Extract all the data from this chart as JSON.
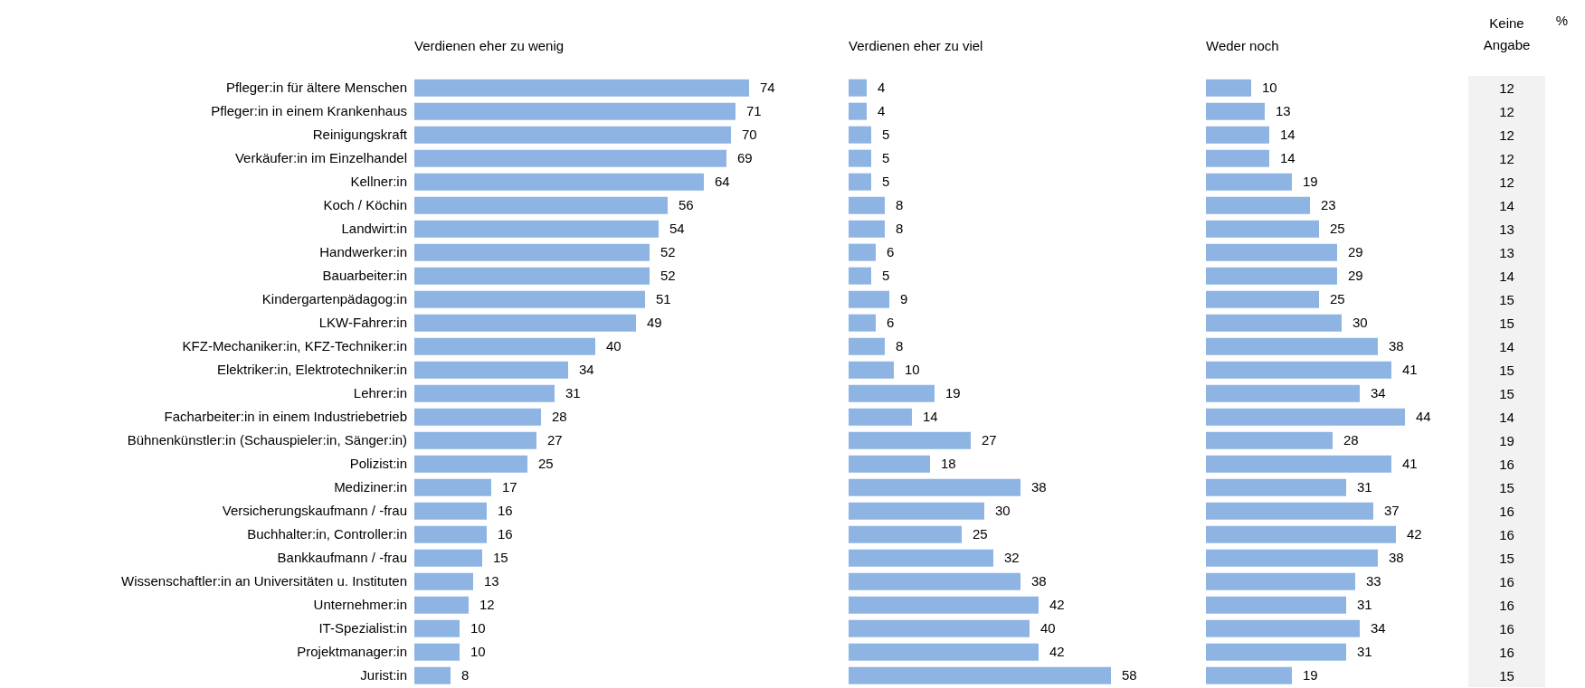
{
  "chart_data": [
    {
      "type": "bar",
      "orientation": "horizontal",
      "title": "Verdienen eher zu wenig",
      "tick_labels": "y",
      "data_labels": true,
      "color": "#8eb4e3",
      "categories": [
        "Pfleger:in für ältere Menschen",
        "Pfleger:in in einem Krankenhaus",
        "Reinigungskraft",
        "Verkäufer:in im Einzelhandel",
        "Kellner:in",
        "Koch / Köchin",
        "Landwirt:in",
        "Handwerker:in",
        "Bauarbeiter:in",
        "Kindergartenpädagog:in",
        "LKW-Fahrer:in",
        "KFZ-Mechaniker:in, KFZ-Techniker:in",
        "Elektriker:in, Elektrotechniker:in",
        "Lehrer:in",
        "Facharbeiter:in in einem Industriebetrieb",
        "Bühnenkünstler:in (Schauspieler:in, Sänger:in)",
        "Polizist:in",
        "Mediziner:in",
        "Versicherungskaufmann / -frau",
        "Buchhalter:in, Controller:in",
        "Bankkaufmann / -frau",
        "Wissenschaftler:in an Universitäten u. Instituten",
        "Unternehmer:in",
        "IT-Spezialist:in",
        "Projektmanager:in",
        "Jurist:in"
      ],
      "values": [
        74,
        71,
        70,
        69,
        64,
        56,
        54,
        52,
        52,
        51,
        49,
        40,
        34,
        31,
        28,
        27,
        25,
        17,
        16,
        16,
        15,
        13,
        12,
        10,
        10,
        8
      ]
    },
    {
      "type": "bar",
      "orientation": "horizontal",
      "title": "Verdienen eher zu viel",
      "tick_labels": false,
      "data_labels": true,
      "color": "#8eb4e3",
      "categories": [
        null,
        null,
        null,
        null,
        null,
        null,
        null,
        null,
        null,
        null,
        null,
        null,
        null,
        null,
        null,
        null,
        null,
        null,
        null,
        null,
        null,
        null,
        null,
        null,
        null,
        null
      ],
      "values": [
        4,
        4,
        5,
        5,
        5,
        8,
        8,
        6,
        5,
        9,
        6,
        8,
        10,
        19,
        14,
        27,
        18,
        38,
        30,
        25,
        32,
        38,
        42,
        40,
        42,
        58
      ]
    },
    {
      "type": "bar",
      "orientation": "horizontal",
      "title": "Weder noch",
      "tick_labels": false,
      "data_labels": true,
      "color": "#8eb4e3",
      "categories": [
        null,
        null,
        null,
        null,
        null,
        null,
        null,
        null,
        null,
        null,
        null,
        null,
        null,
        null,
        null,
        null,
        null,
        null,
        null,
        null,
        null,
        null,
        null,
        null,
        null,
        null
      ],
      "values": [
        10,
        13,
        14,
        14,
        19,
        23,
        25,
        29,
        29,
        25,
        30,
        38,
        41,
        34,
        44,
        28,
        41,
        31,
        37,
        42,
        38,
        33,
        31,
        34,
        31,
        19
      ]
    },
    {
      "type": "other",
      "title": "Keine Angabe",
      "annotations": [
        "%"
      ],
      "color": "#f2f2f2",
      "data_labels": true,
      "categories": [
        null,
        null,
        null,
        null,
        null,
        null,
        null,
        null,
        null,
        null,
        null,
        null,
        null,
        null,
        null,
        null,
        null,
        null,
        null,
        null,
        null,
        null,
        null,
        null,
        null,
        null
      ],
      "values": [
        12,
        12,
        12,
        12,
        12,
        14,
        13,
        13,
        14,
        15,
        15,
        14,
        15,
        15,
        14,
        19,
        16,
        15,
        16,
        16,
        15,
        16,
        16,
        16,
        16,
        15
      ]
    }
  ]
}
